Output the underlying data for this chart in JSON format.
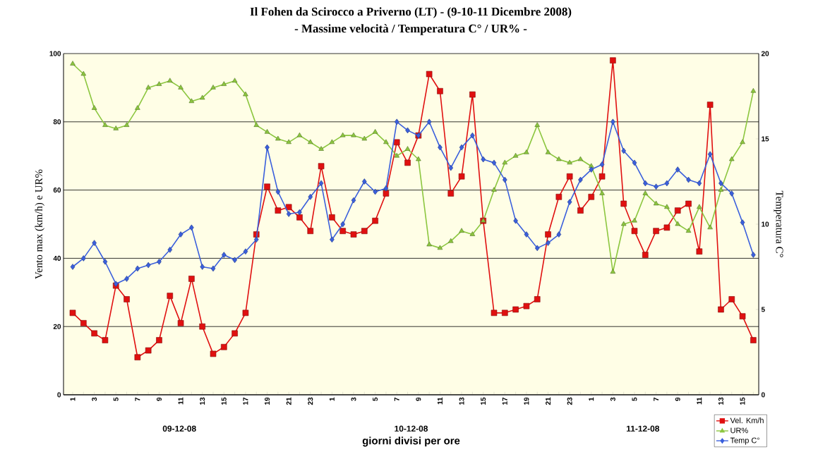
{
  "chart_data": {
    "type": "line",
    "title": "Il Fohen da Scirocco a Priverno (LT) -  (9-10-11 Dicembre 2008)",
    "subtitle": "- Massime velocità / Temperatura C° /  UR% -",
    "xlabel": "giorni  divisi per ore",
    "ylabel": "Vento max (km/h)   e   UR%",
    "y2label": "Temperatura  C°",
    "annotations": [
      "09-12-08",
      "10-12-08",
      "11-12-08"
    ],
    "categories": [
      "1",
      null,
      "3",
      null,
      "5",
      null,
      "7",
      null,
      "9",
      null,
      "11",
      null,
      "13",
      null,
      "15",
      null,
      "17",
      null,
      "19",
      null,
      "21",
      null,
      "23",
      null,
      "1",
      null,
      "3",
      null,
      "5",
      null,
      "7",
      null,
      "9",
      null,
      "11",
      null,
      "13",
      null,
      "15",
      null,
      "17",
      null,
      "19",
      null,
      "21",
      null,
      "23",
      null,
      "1",
      null,
      "3",
      null,
      "5",
      null,
      "7",
      null,
      "9",
      null,
      "11",
      null,
      "13",
      null,
      "15",
      null
    ],
    "series": [
      {
        "name": "Vel. Km/h",
        "color": "#e01010",
        "marker": "square",
        "values": [
          24,
          21,
          18,
          16,
          32,
          28,
          11,
          13,
          16,
          29,
          21,
          34,
          20,
          12,
          14,
          18,
          24,
          47,
          61,
          54,
          55,
          52,
          48,
          67,
          52,
          48,
          47,
          48,
          51,
          59,
          74,
          68,
          76,
          94,
          89,
          59,
          64,
          88,
          51,
          24,
          24,
          25,
          26,
          28,
          47,
          58,
          64,
          54,
          58,
          64,
          98,
          56,
          48,
          41,
          48,
          49,
          54,
          56,
          42,
          85,
          25,
          28,
          23,
          16
        ]
      },
      {
        "name": "UR%",
        "color": "#8cc63f",
        "marker": "triangle",
        "values": [
          97,
          94,
          84,
          79,
          78,
          79,
          84,
          90,
          91,
          92,
          90,
          86,
          87,
          90,
          91,
          92,
          88,
          79,
          77,
          75,
          74,
          76,
          74,
          72,
          74,
          76,
          76,
          75,
          77,
          74,
          70,
          72,
          69,
          44,
          43,
          45,
          48,
          47,
          51,
          60,
          68,
          70,
          71,
          79,
          71,
          69,
          68,
          69,
          67,
          59,
          36,
          50,
          51,
          59,
          56,
          55,
          50,
          48,
          55,
          49,
          60,
          69,
          74,
          89
        ]
      },
      {
        "name": "Temp C°",
        "color": "#3a5fdc",
        "marker": "diamond",
        "axis": "y2",
        "values": [
          7.5,
          8.0,
          8.9,
          7.8,
          6.5,
          6.8,
          7.4,
          7.6,
          7.8,
          8.5,
          9.4,
          9.8,
          7.5,
          7.4,
          8.2,
          7.9,
          8.4,
          9.1,
          14.5,
          11.9,
          10.6,
          10.7,
          11.6,
          12.4,
          9.1,
          10.0,
          11.4,
          12.5,
          11.9,
          12.1,
          16.0,
          15.5,
          15.2,
          16.0,
          14.5,
          13.3,
          14.5,
          15.2,
          13.8,
          13.6,
          12.6,
          10.2,
          9.4,
          8.6,
          8.9,
          9.4,
          11.3,
          12.6,
          13.2,
          13.5,
          16.0,
          14.3,
          13.6,
          12.4,
          12.2,
          12.4,
          13.2,
          12.6,
          12.4,
          14.1,
          12.4,
          11.8,
          10.1,
          8.2
        ]
      }
    ],
    "ylim": [
      0,
      100
    ],
    "yticks": [
      0,
      20,
      40,
      60,
      80,
      100
    ],
    "y2lim": [
      0,
      20
    ],
    "y2ticks": [
      0,
      5,
      10,
      15,
      20
    ],
    "grid": "y",
    "legend": "bottom right"
  }
}
